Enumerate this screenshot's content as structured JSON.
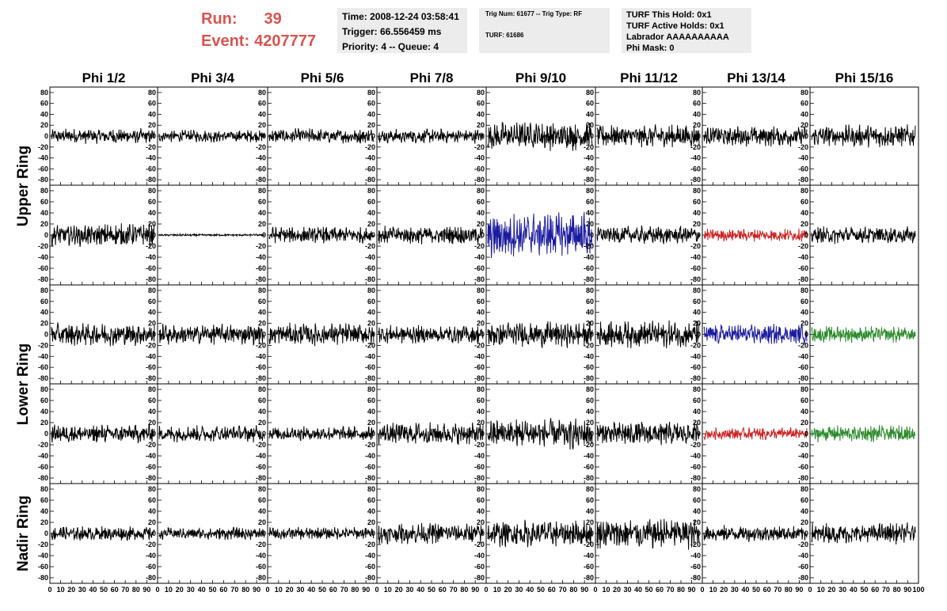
{
  "header": {
    "run_label": "Run:",
    "run_value": "39",
    "event_label": "Event:",
    "event_value": "4207777",
    "time": "Time: 2008-12-24 03:58:41",
    "trigger": "Trigger: 66.556459 ms",
    "priority": "Priority: 4 -- Queue: 4",
    "trig_num": "Trig Num: 61677 -- Trig Type: RF",
    "turf": "TURF: 61686",
    "turf_this_hold": "TURF This Hold: 0x1",
    "turf_active_holds": "TURF Active Holds: 0x1",
    "labrador": "Labrador AAAAAAAAAA",
    "phi_mask": "Phi Mask: 0"
  },
  "colors": {
    "accent": "#d9534f",
    "trace_default": "#000000",
    "trace_blue": "#1a1a9e",
    "trace_red": "#cc2222",
    "trace_green": "#2a8a2a"
  },
  "chart_data": {
    "type": "line",
    "columns": [
      "Phi 1/2",
      "Phi 3/4",
      "Phi 5/6",
      "Phi 7/8",
      "Phi 9/10",
      "Phi 11/12",
      "Phi 13/14",
      "Phi 15/16"
    ],
    "ring_labels": [
      "Upper Ring",
      "Lower Ring",
      "Nadir Ring"
    ],
    "rows": 5,
    "x_ticks": [
      0,
      10,
      20,
      30,
      40,
      50,
      60,
      70,
      80,
      90,
      100
    ],
    "y_ticks": [
      80,
      60,
      40,
      20,
      0,
      -20,
      -40,
      -60,
      -80
    ],
    "ylim": [
      -90,
      90
    ],
    "xlim": [
      0,
      100
    ],
    "amplitudes": [
      [
        15,
        12,
        15,
        14,
        28,
        22,
        20,
        22
      ],
      [
        22,
        2,
        16,
        18,
        45,
        18,
        12,
        17
      ],
      [
        22,
        20,
        22,
        18,
        25,
        26,
        20,
        16
      ],
      [
        18,
        16,
        14,
        22,
        30,
        24,
        12,
        16
      ],
      [
        14,
        12,
        12,
        20,
        26,
        30,
        16,
        20
      ]
    ],
    "trace_colors": [
      [
        "default",
        "default",
        "default",
        "default",
        "default",
        "default",
        "default",
        "default"
      ],
      [
        "default",
        "default",
        "default",
        "default",
        "blue",
        "default",
        "red",
        "default"
      ],
      [
        "default",
        "default",
        "default",
        "default",
        "default",
        "default",
        "blue",
        "green"
      ],
      [
        "default",
        "default",
        "default",
        "default",
        "default",
        "default",
        "red",
        "green"
      ],
      [
        "default",
        "default",
        "default",
        "default",
        "default",
        "default",
        "default",
        "default"
      ]
    ]
  }
}
